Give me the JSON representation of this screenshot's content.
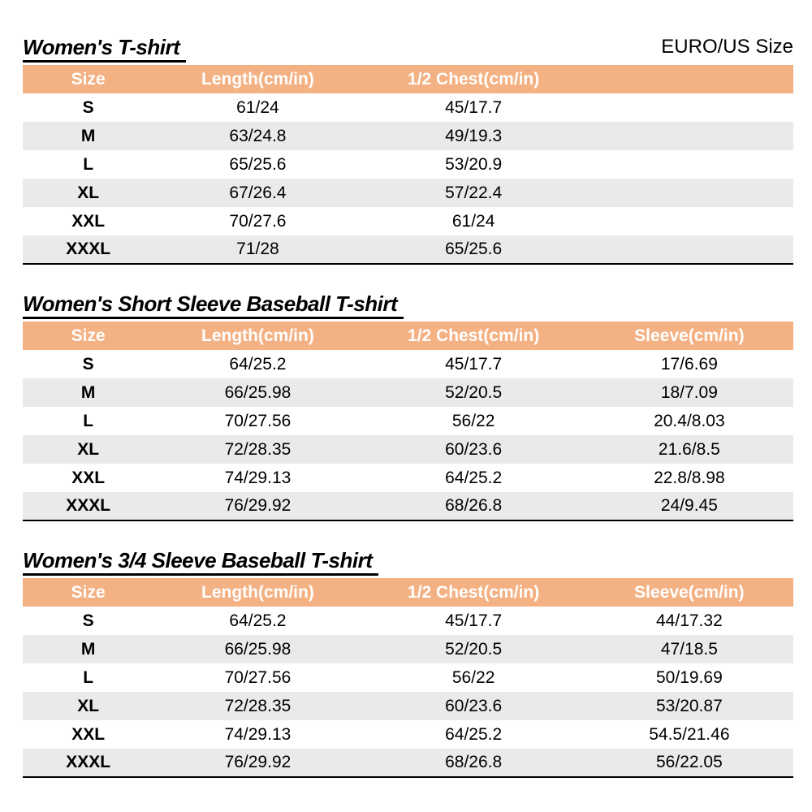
{
  "header": {
    "size_standard_label": "EURO/US Size"
  },
  "colors": {
    "header_bg": "#F4B183",
    "header_text": "#FFFFFF",
    "row_alt": "#EAEAEA",
    "title_text": "#000000",
    "table_rule": "#000000"
  },
  "tables": [
    {
      "title": "Women's T-shirt",
      "columns": [
        "Size",
        "Length(cm/in)",
        "1/2 Chest(cm/in)"
      ],
      "rows": [
        [
          "S",
          "61/24",
          "45/17.7"
        ],
        [
          "M",
          "63/24.8",
          "49/19.3"
        ],
        [
          "L",
          "65/25.6",
          "53/20.9"
        ],
        [
          "XL",
          "67/26.4",
          "57/22.4"
        ],
        [
          "XXL",
          "70/27.6",
          "61/24"
        ],
        [
          "XXXL",
          "71/28",
          "65/25.6"
        ]
      ]
    },
    {
      "title": "Women's Short Sleeve Baseball T-shirt",
      "columns": [
        "Size",
        "Length(cm/in)",
        "1/2 Chest(cm/in)",
        "Sleeve(cm/in)"
      ],
      "rows": [
        [
          "S",
          "64/25.2",
          "45/17.7",
          "17/6.69"
        ],
        [
          "M",
          "66/25.98",
          "52/20.5",
          "18/7.09"
        ],
        [
          "L",
          "70/27.56",
          "56/22",
          "20.4/8.03"
        ],
        [
          "XL",
          "72/28.35",
          "60/23.6",
          "21.6/8.5"
        ],
        [
          "XXL",
          "74/29.13",
          "64/25.2",
          "22.8/8.98"
        ],
        [
          "XXXL",
          "76/29.92",
          "68/26.8",
          "24/9.45"
        ]
      ]
    },
    {
      "title": "Women's 3/4 Sleeve Baseball T-shirt",
      "columns": [
        "Size",
        "Length(cm/in)",
        "1/2 Chest(cm/in)",
        "Sleeve(cm/in)"
      ],
      "rows": [
        [
          "S",
          "64/25.2",
          "45/17.7",
          "44/17.32"
        ],
        [
          "M",
          "66/25.98",
          "52/20.5",
          "47/18.5"
        ],
        [
          "L",
          "70/27.56",
          "56/22",
          "50/19.69"
        ],
        [
          "XL",
          "72/28.35",
          "60/23.6",
          "53/20.87"
        ],
        [
          "XXL",
          "74/29.13",
          "64/25.2",
          "54.5/21.46"
        ],
        [
          "XXXL",
          "76/29.92",
          "68/26.8",
          "56/22.05"
        ]
      ]
    }
  ]
}
